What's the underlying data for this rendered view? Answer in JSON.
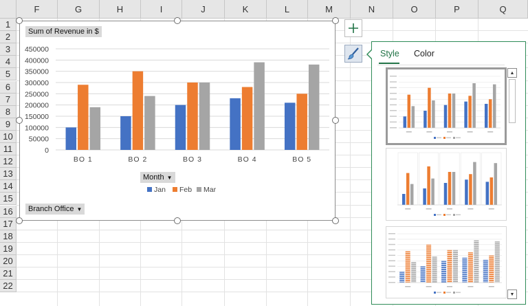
{
  "columns": [
    "F",
    "G",
    "H",
    "I",
    "J",
    "K",
    "L",
    "M",
    "N",
    "O",
    "P",
    "Q"
  ],
  "rows": [
    "1",
    "2",
    "3",
    "4",
    "5",
    "6",
    "7",
    "8",
    "9",
    "10",
    "11",
    "12",
    "13",
    "14",
    "15",
    "16",
    "17",
    "18",
    "19",
    "20",
    "21",
    "22"
  ],
  "chart": {
    "value_field_button": "Sum of Revenue in $",
    "axis_field_button": "Month",
    "filter_field_button": "Branch Office",
    "colors": {
      "Jan": "#4472c4",
      "Feb": "#ed7d31",
      "Mar": "#a5a5a5"
    }
  },
  "chart_data": {
    "type": "bar",
    "categories": [
      "BO 1",
      "BO 2",
      "BO 3",
      "BO 4",
      "BO 5"
    ],
    "series": [
      {
        "name": "Jan",
        "values": [
          100000,
          150000,
          200000,
          230000,
          210000
        ]
      },
      {
        "name": "Feb",
        "values": [
          290000,
          350000,
          300000,
          280000,
          250000
        ]
      },
      {
        "name": "Mar",
        "values": [
          190000,
          240000,
          300000,
          390000,
          380000
        ]
      }
    ],
    "title": "",
    "xlabel": "",
    "ylabel": "",
    "ylim": [
      0,
      450000
    ],
    "yticks": [
      "450000",
      "400000",
      "350000",
      "300000",
      "250000",
      "200000",
      "150000",
      "100000",
      "50000",
      "0"
    ],
    "grid": true,
    "legend_placement": "bottom"
  },
  "side_buttons": {
    "add_icon": "plus-icon",
    "style_icon": "paintbrush-icon"
  },
  "style_pane": {
    "tabs": [
      "Style",
      "Color"
    ],
    "active_tab": "Style"
  }
}
